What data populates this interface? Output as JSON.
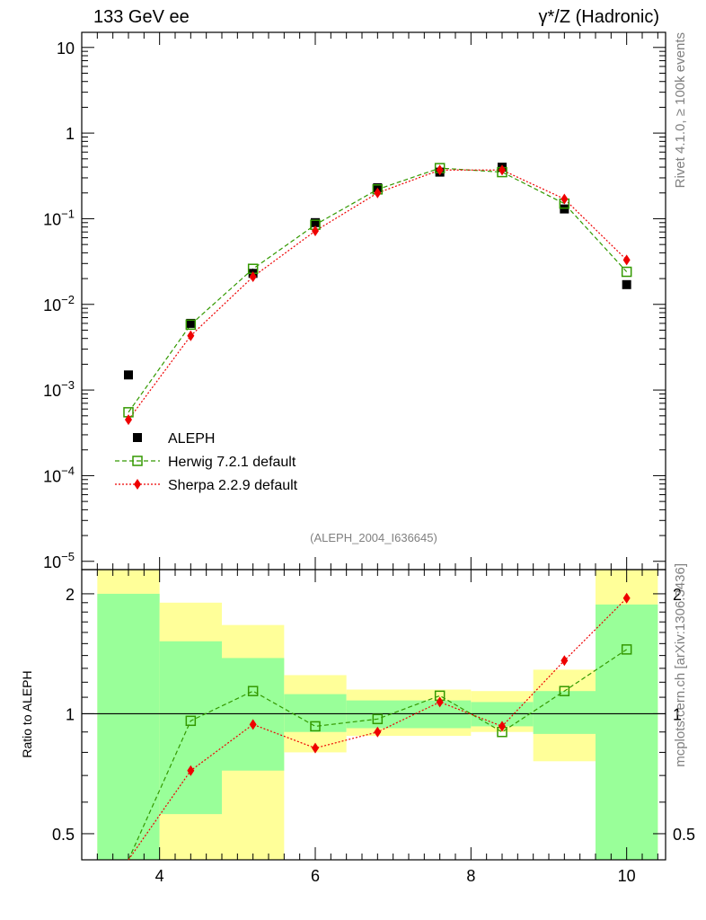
{
  "header": {
    "left_title": "133 GeV ee",
    "right_title": "γ*/Z (Hadronic)"
  },
  "side_labels": {
    "rivet": "Rivet 4.1.0, ≥ 100k events",
    "mcplots": "mcplots.cern.ch [arXiv:1306.3436]"
  },
  "analysis_id": "(ALEPH_2004_I636645)",
  "colors": {
    "data": "#000000",
    "herwig": "#339900",
    "sherpa": "#ee0000",
    "band_inner": "#99ff99",
    "band_outer": "#ffff99"
  },
  "chart_data": [
    {
      "type": "scatter",
      "panel": "main",
      "yscale": "log",
      "xlim": [
        3.0,
        10.5
      ],
      "ylim": [
        8e-06,
        15
      ],
      "y_ticks": [
        {
          "value": 10,
          "base": "10",
          "exp": ""
        },
        {
          "value": 1,
          "base": "1",
          "exp": ""
        },
        {
          "value": 0.1,
          "base": "10",
          "exp": "−1"
        },
        {
          "value": 0.01,
          "base": "10",
          "exp": "−2"
        },
        {
          "value": 0.001,
          "base": "10",
          "exp": "−3"
        },
        {
          "value": 0.0001,
          "base": "10",
          "exp": "−4"
        },
        {
          "value": 1e-05,
          "base": "10",
          "exp": "−5"
        }
      ],
      "x": [
        3.6,
        4.4,
        5.2,
        6.0,
        6.8,
        7.6,
        8.4,
        9.2,
        10.0
      ],
      "series": [
        {
          "name": "ALEPH",
          "key": "data",
          "marker": "square-filled",
          "values": [
            0.0015,
            0.006,
            0.023,
            0.09,
            0.23,
            0.35,
            0.4,
            0.13,
            0.017
          ]
        },
        {
          "name": "Herwig 7.2.1 default",
          "key": "herwig",
          "marker": "square-open",
          "line": "dashed",
          "values": [
            0.00055,
            0.0058,
            0.026,
            0.085,
            0.22,
            0.39,
            0.35,
            0.15,
            0.024
          ]
        },
        {
          "name": "Sherpa 2.2.9 default",
          "key": "sherpa",
          "marker": "diamond",
          "line": "dotted",
          "values": [
            0.00045,
            0.0043,
            0.021,
            0.072,
            0.2,
            0.37,
            0.37,
            0.17,
            0.033
          ]
        }
      ],
      "legend": [
        {
          "label": "ALEPH",
          "key": "data"
        },
        {
          "label": "Herwig 7.2.1 default",
          "key": "herwig"
        },
        {
          "label": "Sherpa 2.2.9 default",
          "key": "sherpa"
        }
      ],
      "legend_position": "bottom-left"
    },
    {
      "type": "line",
      "panel": "ratio",
      "yscale": "log",
      "ylabel": "Ratio to ALEPH",
      "xlim": [
        3.0,
        10.5
      ],
      "ylim": [
        0.43,
        2.3
      ],
      "x_ticks": [
        4,
        6,
        8,
        10
      ],
      "x_tick_labels": [
        "4",
        "6",
        "8",
        "10"
      ],
      "y_ticks": [
        0.5,
        1,
        2
      ],
      "y_tick_labels": [
        "0.5",
        "1",
        "2"
      ],
      "bins": [
        {
          "lo": 3.2,
          "hi": 4.0,
          "inner": [
            0.4,
            2.0
          ],
          "outer": [
            0.4,
            2.6
          ]
        },
        {
          "lo": 4.0,
          "hi": 4.8,
          "inner": [
            0.56,
            1.52
          ],
          "outer": [
            0.4,
            1.9
          ]
        },
        {
          "lo": 4.8,
          "hi": 5.6,
          "inner": [
            0.72,
            1.38
          ],
          "outer": [
            0.4,
            1.67
          ]
        },
        {
          "lo": 5.6,
          "hi": 6.4,
          "inner": [
            0.9,
            1.12
          ],
          "outer": [
            0.8,
            1.25
          ]
        },
        {
          "lo": 6.4,
          "hi": 7.2,
          "inner": [
            0.92,
            1.08
          ],
          "outer": [
            0.88,
            1.15
          ]
        },
        {
          "lo": 7.2,
          "hi": 8.0,
          "inner": [
            0.92,
            1.08
          ],
          "outer": [
            0.88,
            1.15
          ]
        },
        {
          "lo": 8.0,
          "hi": 8.8,
          "inner": [
            0.93,
            1.07
          ],
          "outer": [
            0.9,
            1.14
          ]
        },
        {
          "lo": 8.8,
          "hi": 9.6,
          "inner": [
            0.89,
            1.14
          ],
          "outer": [
            0.76,
            1.29
          ]
        },
        {
          "lo": 9.6,
          "hi": 10.4,
          "inner": [
            0.4,
            1.88
          ],
          "outer": [
            0.4,
            2.6
          ]
        }
      ],
      "series": [
        {
          "name": "Herwig 7.2.1 default",
          "key": "herwig",
          "values": [
            0.37,
            0.96,
            1.14,
            0.93,
            0.97,
            1.11,
            0.9,
            1.14,
            1.45
          ]
        },
        {
          "name": "Sherpa 2.2.9 default",
          "key": "sherpa",
          "values": [
            0.3,
            0.72,
            0.94,
            0.82,
            0.9,
            1.07,
            0.93,
            1.36,
            1.95
          ]
        }
      ]
    }
  ]
}
